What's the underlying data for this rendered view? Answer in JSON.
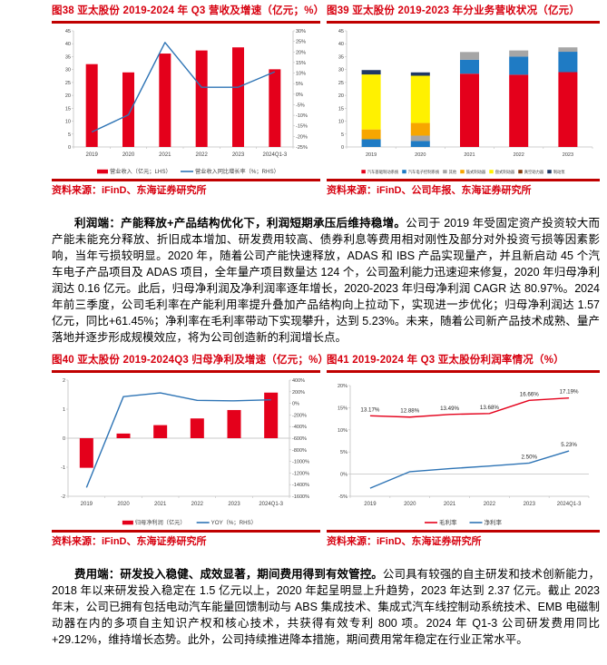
{
  "colors": {
    "accent_red": "#d7000f",
    "rule_red": "#c00000",
    "bar_red": "#e4001b",
    "line_blue": "#2e74b5",
    "stack_blue": "#1f7bc4",
    "stack_gray": "#a6a6a6",
    "stack_amber": "#f7a600",
    "stack_yellow": "#fff100",
    "stack_navy": "#1f3864",
    "axis_gray": "#bfbfbf",
    "tick_text": "#404040"
  },
  "figures": {
    "fig38": {
      "title": "图38  亚太股份 2019-2024 年 Q3 营收及增速（亿元；%）",
      "source": "资料来源：iFinD、东海证券研究所"
    },
    "fig39": {
      "title": "图39  亚太股份 2019-2023 年分业务营收状况（亿元）",
      "source": "资料来源：iFinD、公司年报、东海证券研究所"
    },
    "fig40": {
      "title": "图40  亚太股份 2019-2024Q3 归母净利及增速（亿元；%）",
      "source": "资料来源：iFinD、东海证券研究所"
    },
    "fig41": {
      "title": "图41  2019-2024 年 Q3 亚太股份利润率情况（%）",
      "source": "资料来源：iFinD、东海证券研究所"
    }
  },
  "paragraphs": {
    "profit": {
      "lead": "利润端：产能释放+产品结构优化下，利润短期承压后维持稳增。",
      "body": "公司于 2019 年受固定资产投资较大而产能未能充分释放、折旧成本增加、研发费用较高、债券利息等费用相对刚性及部分对外投资亏损等因素影响，当年亏损较明显。2020 年，随着公司产能快速释放，ADAS 和 IBS 产品实现量产，并且新启动 45 个汽车电子产品项目及 ADAS 项目，全年量产项目数量达 124 个，公司盈利能力迅速迎来修复，2020 年归母净利润达 0.16 亿元。此后，归母净利润及净利润率逐年增长，2020-2023 年归母净利润 CAGR 达 80.97%。2024 年前三季度，公司毛利率在产能利用率提升叠加产品结构向上拉动下，实现进一步优化；归母净利润达 1.57 亿元，同比+61.45%；净利率在毛利率带动下实现攀升，达到 5.23%。未来，随着公司新产品技术成熟、量产落地并逐步形成规模效应，将为公司创造新的利润增长点。"
    },
    "expense": {
      "lead": "费用端：研发投入稳健、成效显著，期间费用得到有效管控。",
      "body": "公司具有较强的自主研发和技术创新能力，2018 年以来研发投入稳定在 1.5 亿元以上，2020 年起呈明显上升趋势，2023 年达到 2.37 亿元。截止 2023 年末，公司已拥有包括电动汽车能量回馈制动与 ABS 集成技术、集成式汽车线控制动系统技术、EMB 电磁制动器在内的多项自主知识产权和核心技术，共获得有效专利 800 项。2024 年 Q1-3 公司研发费用同比+29.12%，维持增长态势。此外，公司持续推进降本措施，期间费用常年稳定在行业正常水平。"
    }
  },
  "chart_data": [
    {
      "target": "chart-fig38",
      "type": "bar+line",
      "title": "亚太股份 2019-2024 年 Q3 营收及增速（亿元；%）",
      "categories": [
        "2019",
        "2020",
        "2021",
        "2022",
        "2023",
        "2024Q1-3"
      ],
      "left_axis": {
        "min": 0,
        "max": 45,
        "step": 5,
        "format": "number"
      },
      "right_axis": {
        "min": -25,
        "max": 30,
        "step": 5,
        "format": "percent"
      },
      "bar_series": [
        {
          "name": "营业收入（亿元；LHS）",
          "color": "#e4001b",
          "values": [
            32.1,
            28.9,
            36.2,
            37.4,
            38.6,
            30.1
          ]
        }
      ],
      "line_series": [
        {
          "name": "营业收入同比增长率（%；RHS）",
          "color": "#2e74b5",
          "axis": "right",
          "values": [
            -17.9,
            -9.8,
            24.5,
            3.3,
            3.3,
            10.6
          ]
        }
      ]
    },
    {
      "target": "chart-fig39",
      "type": "stacked-bar",
      "title": "亚太股份 2019-2023 年分业务营收状况（亿元）",
      "categories": [
        "2019",
        "2020",
        "2021",
        "2022",
        "2023"
      ],
      "left_axis": {
        "min": 0,
        "max": 45,
        "step": 5,
        "format": "number"
      },
      "bar_series": [
        {
          "name": "汽车基础制动系统",
          "color": "#e4001b",
          "values": [
            0,
            0,
            28.4,
            28.0,
            29.0
          ]
        },
        {
          "name": "汽车电子控制系统",
          "color": "#1f7bc4",
          "values": [
            3.0,
            2.3,
            5.4,
            7.0,
            7.9
          ]
        },
        {
          "name": "其他",
          "color": "#a6a6a6",
          "values": [
            0,
            2.1,
            3.0,
            2.4,
            1.7
          ]
        },
        {
          "name": "鼓式制动器",
          "color": "#f7a600",
          "values": [
            3.8,
            4.9,
            0,
            0,
            0
          ]
        },
        {
          "name": "盘式制动器",
          "color": "#fff100",
          "values": [
            21.3,
            18.3,
            0,
            0,
            0
          ]
        },
        {
          "name": "真空助力器",
          "color": "#843c0c",
          "values": [
            0,
            0,
            0,
            0,
            0
          ]
        },
        {
          "name": "制动泵",
          "color": "#1f3864",
          "values": [
            1.7,
            1.3,
            0,
            0,
            0
          ]
        }
      ],
      "line_series": []
    },
    {
      "target": "chart-fig40",
      "type": "bar+line",
      "title": "亚太股份 2019-2024Q3 归母净利及增速（亿元；%）",
      "categories": [
        "2019",
        "2020",
        "2021",
        "2022",
        "2023",
        "2024Q1-3"
      ],
      "left_axis": {
        "min": -2,
        "max": 2,
        "step": 1,
        "format": "number"
      },
      "right_axis": {
        "min": -1600,
        "max": 400,
        "step": 200,
        "format": "percent"
      },
      "zero_line": true,
      "bar_series": [
        {
          "name": "归母净利润（亿元）",
          "color": "#e4001b",
          "values": [
            -1.02,
            0.16,
            0.45,
            0.68,
            0.97,
            1.57
          ]
        }
      ],
      "line_series": [
        {
          "name": "YOY（%；RHS）",
          "color": "#2e74b5",
          "axis": "right",
          "values": [
            -1450,
            116,
            181,
            51,
            43,
            61
          ]
        }
      ]
    },
    {
      "target": "chart-fig41",
      "type": "line",
      "title": "2019-2024 年 Q3 亚太股份利润率情况（%）",
      "categories": [
        "2019",
        "2020",
        "2021",
        "2022",
        "2023",
        "2024Q1-3"
      ],
      "left_axis": {
        "min": -5,
        "max": 20,
        "step": 5,
        "format": "percent"
      },
      "zero_line": true,
      "line_series": [
        {
          "name": "毛利率",
          "color": "#e4001b",
          "axis": "left",
          "values": [
            13.17,
            12.88,
            13.49,
            13.68,
            16.66,
            17.19
          ],
          "labels": [
            "13.17%",
            "12.88%",
            "13.49%",
            "13.68%",
            "16.66%",
            "17.19%"
          ]
        },
        {
          "name": "净利率",
          "color": "#2e74b5",
          "axis": "left",
          "values": [
            -3.18,
            0.55,
            1.24,
            1.82,
            2.5,
            5.23
          ],
          "labels": [
            null,
            null,
            null,
            null,
            "2.50%",
            "5.23%"
          ]
        }
      ]
    }
  ]
}
